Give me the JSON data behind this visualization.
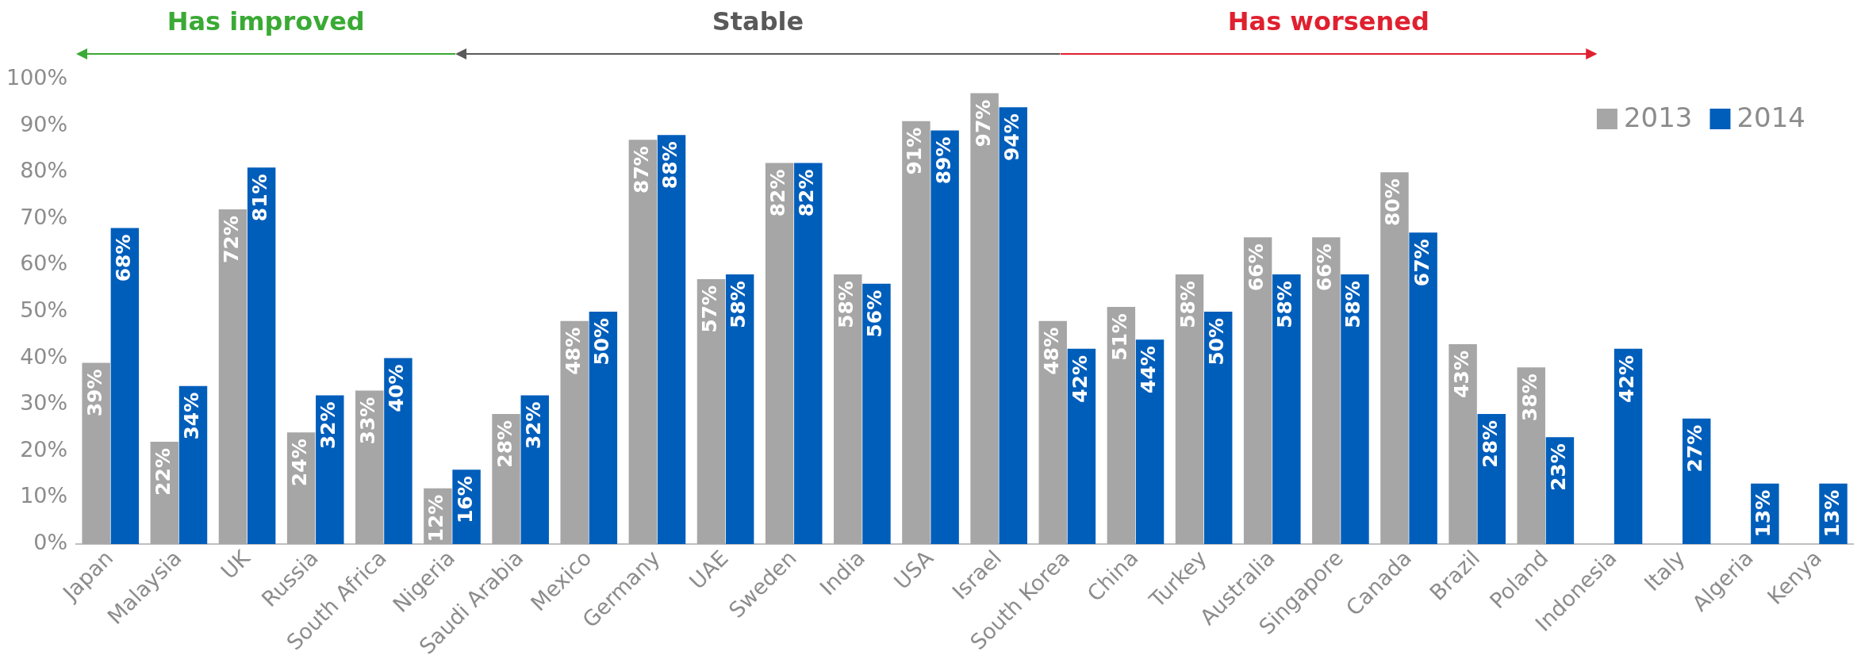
{
  "chart_data": {
    "type": "bar",
    "categories": [
      "Japan",
      "Malaysia",
      "UK",
      "Russia",
      "South Africa",
      "Nigeria",
      "Saudi Arabia",
      "Mexico",
      "Germany",
      "UAE",
      "Sweden",
      "India",
      "USA",
      "Israel",
      "South Korea",
      "China",
      "Turkey",
      "Australia",
      "Singapore",
      "Canada",
      "Brazil",
      "Poland",
      "Indonesia",
      "Italy",
      "Algeria",
      "Kenya"
    ],
    "series": [
      {
        "name": "2013",
        "color": "#a6a6a6",
        "values": [
          39,
          22,
          72,
          24,
          33,
          12,
          28,
          48,
          87,
          57,
          82,
          58,
          91,
          97,
          48,
          51,
          58,
          66,
          66,
          80,
          43,
          38,
          null,
          null,
          null,
          null
        ],
        "value_labels": [
          "39%",
          "22%",
          "72%",
          "24%",
          "33%",
          "12%",
          "28%",
          "48%",
          "87%",
          "57%",
          "82%",
          "58%",
          "91%",
          "97%",
          "48%",
          "51%",
          "58%",
          "66%",
          "66%",
          "80%",
          "43%",
          "38%",
          null,
          null,
          null,
          null
        ]
      },
      {
        "name": "2014",
        "color": "#005ebb",
        "values": [
          68,
          34,
          81,
          32,
          40,
          16,
          32,
          50,
          88,
          58,
          82,
          56,
          89,
          94,
          42,
          44,
          50,
          58,
          58,
          67,
          28,
          23,
          42,
          27,
          13,
          13
        ],
        "value_labels": [
          "68%",
          "34%",
          "81%",
          "32%",
          "40%",
          "16%",
          "32%",
          "50%",
          "88%",
          "58%",
          "82%",
          "56%",
          "89%",
          "94%",
          "42%",
          "44%",
          "50%",
          "58%",
          "58%",
          "67%",
          "28%",
          "23%",
          "42%",
          "27%",
          "13%",
          "13%"
        ]
      }
    ],
    "ylim": [
      0,
      100
    ],
    "yticks": [
      {
        "value": 0,
        "label": "0%"
      },
      {
        "value": 10,
        "label": "10%"
      },
      {
        "value": 20,
        "label": "20%"
      },
      {
        "value": 30,
        "label": "30%"
      },
      {
        "value": 40,
        "label": "40%"
      },
      {
        "value": 50,
        "label": "50%"
      },
      {
        "value": 60,
        "label": "60%"
      },
      {
        "value": 70,
        "label": "70%"
      },
      {
        "value": 80,
        "label": "80%"
      },
      {
        "value": 90,
        "label": "90%"
      },
      {
        "value": 100,
        "label": "100%"
      }
    ],
    "grid": false,
    "legend": "top right",
    "annotations": [
      "Has improved",
      "Stable",
      "Has worsened"
    ]
  }
}
